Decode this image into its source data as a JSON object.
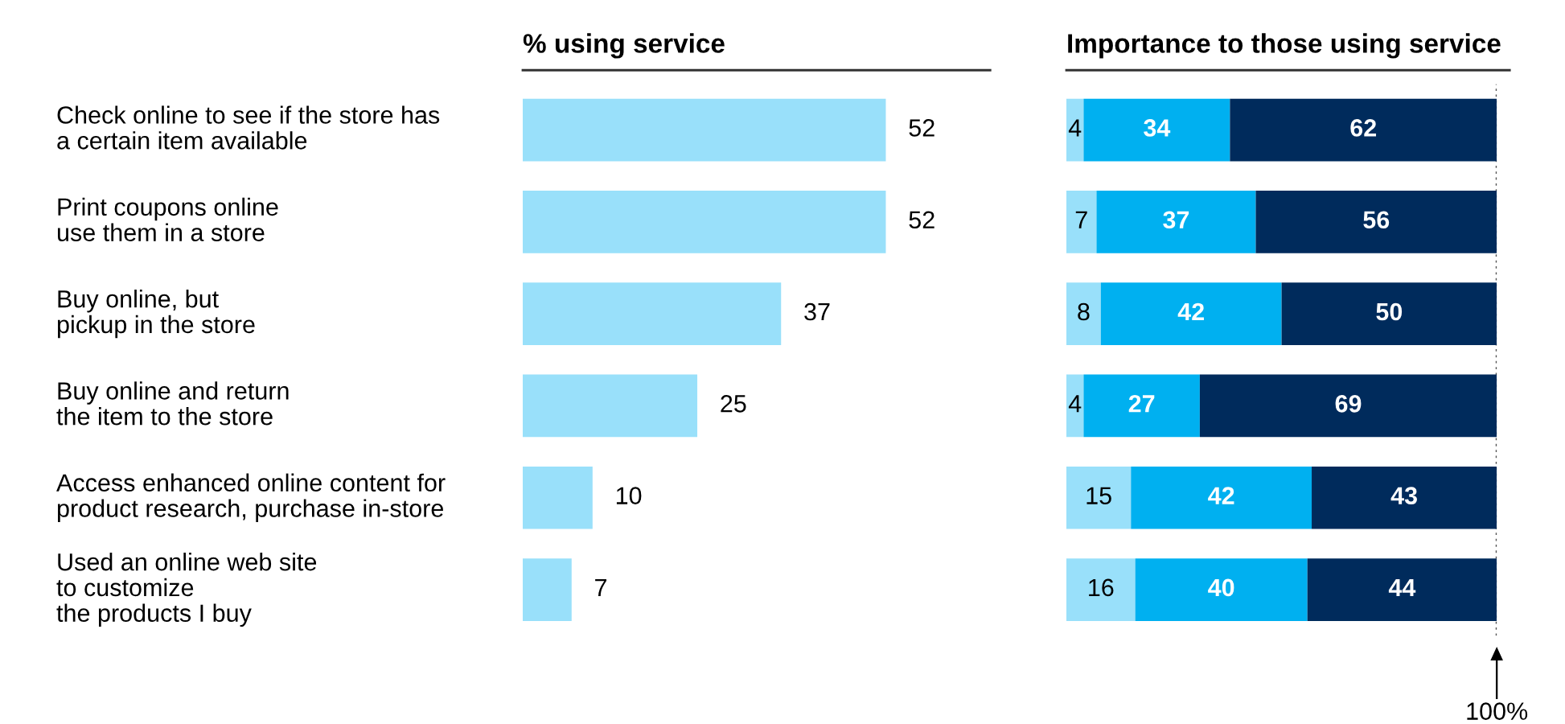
{
  "chart_data": [
    {
      "type": "bar",
      "orientation": "horizontal",
      "title": "% using service",
      "data_labels": true,
      "legend": false,
      "categories": [
        "Check online to see if the store has\na certain item available",
        "Print coupons online\nuse them in a store",
        "Buy online, but\npickup in the store",
        "Buy online and return\nthe item to the store",
        "Access enhanced online content for\nproduct research, purchase in-store",
        "Used an online web site\nto customize\nthe products I buy"
      ],
      "values": [
        52,
        52,
        37,
        25,
        10,
        7
      ],
      "color": "#99e0fa"
    },
    {
      "type": "bar",
      "orientation": "horizontal",
      "stacked": true,
      "title": "Importance to those using service",
      "data_labels": true,
      "legend": false,
      "categories": [
        null,
        null,
        null,
        null,
        null,
        null
      ],
      "xlim": [
        0,
        100
      ],
      "series": [
        {
          "color": "#99e0fa",
          "values": [
            4,
            7,
            8,
            4,
            15,
            16
          ]
        },
        {
          "color": "#00b0f0",
          "values": [
            34,
            37,
            42,
            27,
            42,
            40
          ]
        },
        {
          "color": "#002b5c",
          "values": [
            62,
            56,
            50,
            69,
            43,
            44
          ]
        }
      ],
      "ref_lines": [
        {
          "axis": "x",
          "value": 100,
          "line_style": "dotted",
          "color": "#555555"
        }
      ],
      "annotations": [
        "100%"
      ]
    }
  ]
}
